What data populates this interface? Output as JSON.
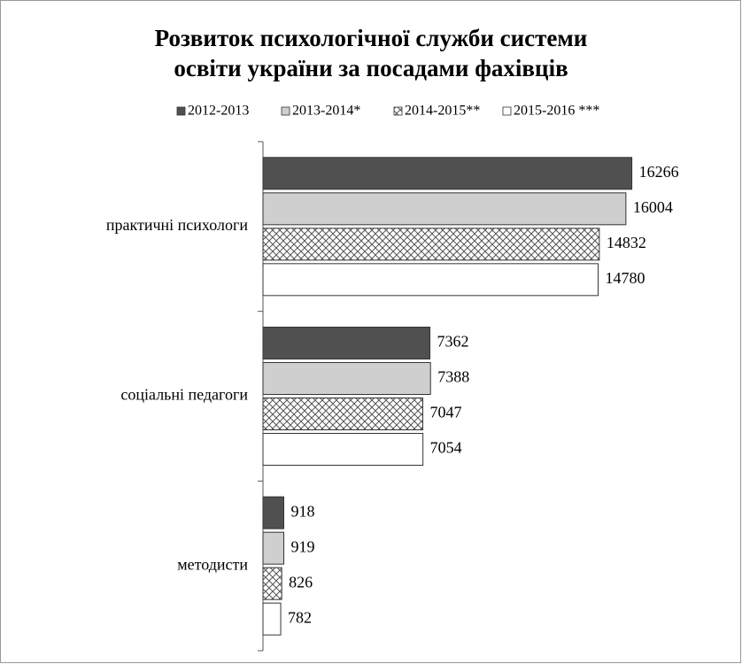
{
  "chart_data": {
    "type": "hbar",
    "title": [
      "Розвиток психологічної служби системи",
      "освіти україни за посадами фахівців"
    ],
    "categories": [
      "практичні психологи",
      "соціальні педагоги",
      "методисти"
    ],
    "series": [
      {
        "name": "2012-2013",
        "color": "#505050",
        "values": [
          16266,
          7362,
          918
        ]
      },
      {
        "name": "2013-2014*",
        "color": "#cfcfcf",
        "values": [
          16004,
          7388,
          919
        ]
      },
      {
        "name": "2014-2015**",
        "color": "#ffffff",
        "pattern": "crosshatch",
        "values": [
          14832,
          7047,
          826
        ]
      },
      {
        "name": "2015-2016 ***",
        "color": "#ffffff",
        "values": [
          14780,
          7054,
          782
        ]
      }
    ],
    "xlim": [
      0,
      18000
    ],
    "legend": "top"
  }
}
